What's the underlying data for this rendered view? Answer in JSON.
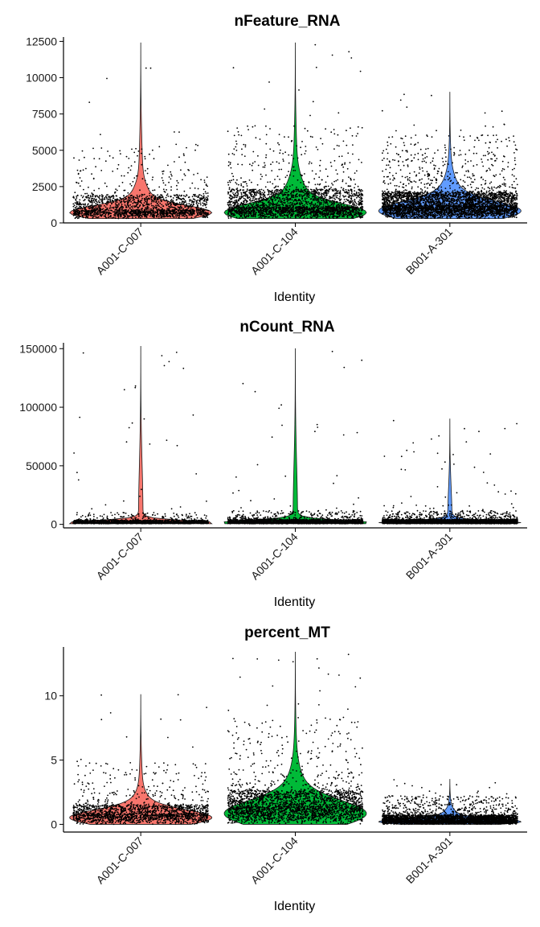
{
  "chart_data": [
    {
      "type": "violin",
      "title": "nFeature_RNA",
      "xlabel": "Identity",
      "ylabel": "",
      "categories": [
        "A001-C-007",
        "A001-C-104",
        "B001-A-301"
      ],
      "colors": [
        "#F8766D",
        "#00BA38",
        "#619CFF"
      ],
      "ylim": [
        0,
        12800
      ],
      "yticks": [
        0,
        2500,
        5000,
        7500,
        10000,
        12500
      ],
      "ytick_labels": [
        "0",
        "2500",
        "5000",
        "7500",
        "10000",
        "12500"
      ],
      "series": [
        {
          "min": 300,
          "q1": 600,
          "median": 900,
          "q3": 1900,
          "max": 12400,
          "mode": 700,
          "n": 1800
        },
        {
          "min": 300,
          "q1": 650,
          "median": 1100,
          "q3": 2300,
          "max": 12400,
          "mode": 700,
          "n": 2600
        },
        {
          "min": 300,
          "q1": 700,
          "median": 1200,
          "q3": 2100,
          "max": 9000,
          "mode": 800,
          "n": 4000
        }
      ]
    },
    {
      "type": "violin",
      "title": "nCount_RNA",
      "xlabel": "Identity",
      "ylabel": "",
      "categories": [
        "A001-C-007",
        "A001-C-104",
        "B001-A-301"
      ],
      "colors": [
        "#F8766D",
        "#00BA38",
        "#619CFF"
      ],
      "ylim": [
        -3000,
        155000
      ],
      "yticks": [
        0,
        50000,
        100000,
        150000
      ],
      "ytick_labels": [
        "0",
        "50000",
        "100000",
        "150000"
      ],
      "series": [
        {
          "min": 500,
          "q1": 1000,
          "median": 1800,
          "q3": 3500,
          "max": 152000,
          "mode": 1200,
          "n": 1800
        },
        {
          "min": 500,
          "q1": 1000,
          "median": 2000,
          "q3": 4000,
          "max": 150000,
          "mode": 1300,
          "n": 2600
        },
        {
          "min": 500,
          "q1": 1000,
          "median": 2000,
          "q3": 4000,
          "max": 90000,
          "mode": 1400,
          "n": 4000
        }
      ]
    },
    {
      "type": "violin",
      "title": "percent_MT",
      "xlabel": "Identity",
      "ylabel": "",
      "categories": [
        "A001-C-007",
        "A001-C-104",
        "B001-A-301"
      ],
      "colors": [
        "#F8766D",
        "#00BA38",
        "#619CFF"
      ],
      "ylim": [
        -0.6,
        13.8
      ],
      "yticks": [
        0,
        5,
        10
      ],
      "ytick_labels": [
        "0",
        "5",
        "10"
      ],
      "series": [
        {
          "min": 0,
          "q1": 0.4,
          "median": 0.8,
          "q3": 1.5,
          "max": 10.1,
          "mode": 0.5,
          "n": 1800
        },
        {
          "min": 0,
          "q1": 0.7,
          "median": 1.4,
          "q3": 2.6,
          "max": 13.4,
          "mode": 0.8,
          "n": 2600
        },
        {
          "min": 0,
          "q1": 0.1,
          "median": 0.3,
          "q3": 0.7,
          "max": 3.5,
          "mode": 0.2,
          "n": 4000
        }
      ]
    }
  ]
}
